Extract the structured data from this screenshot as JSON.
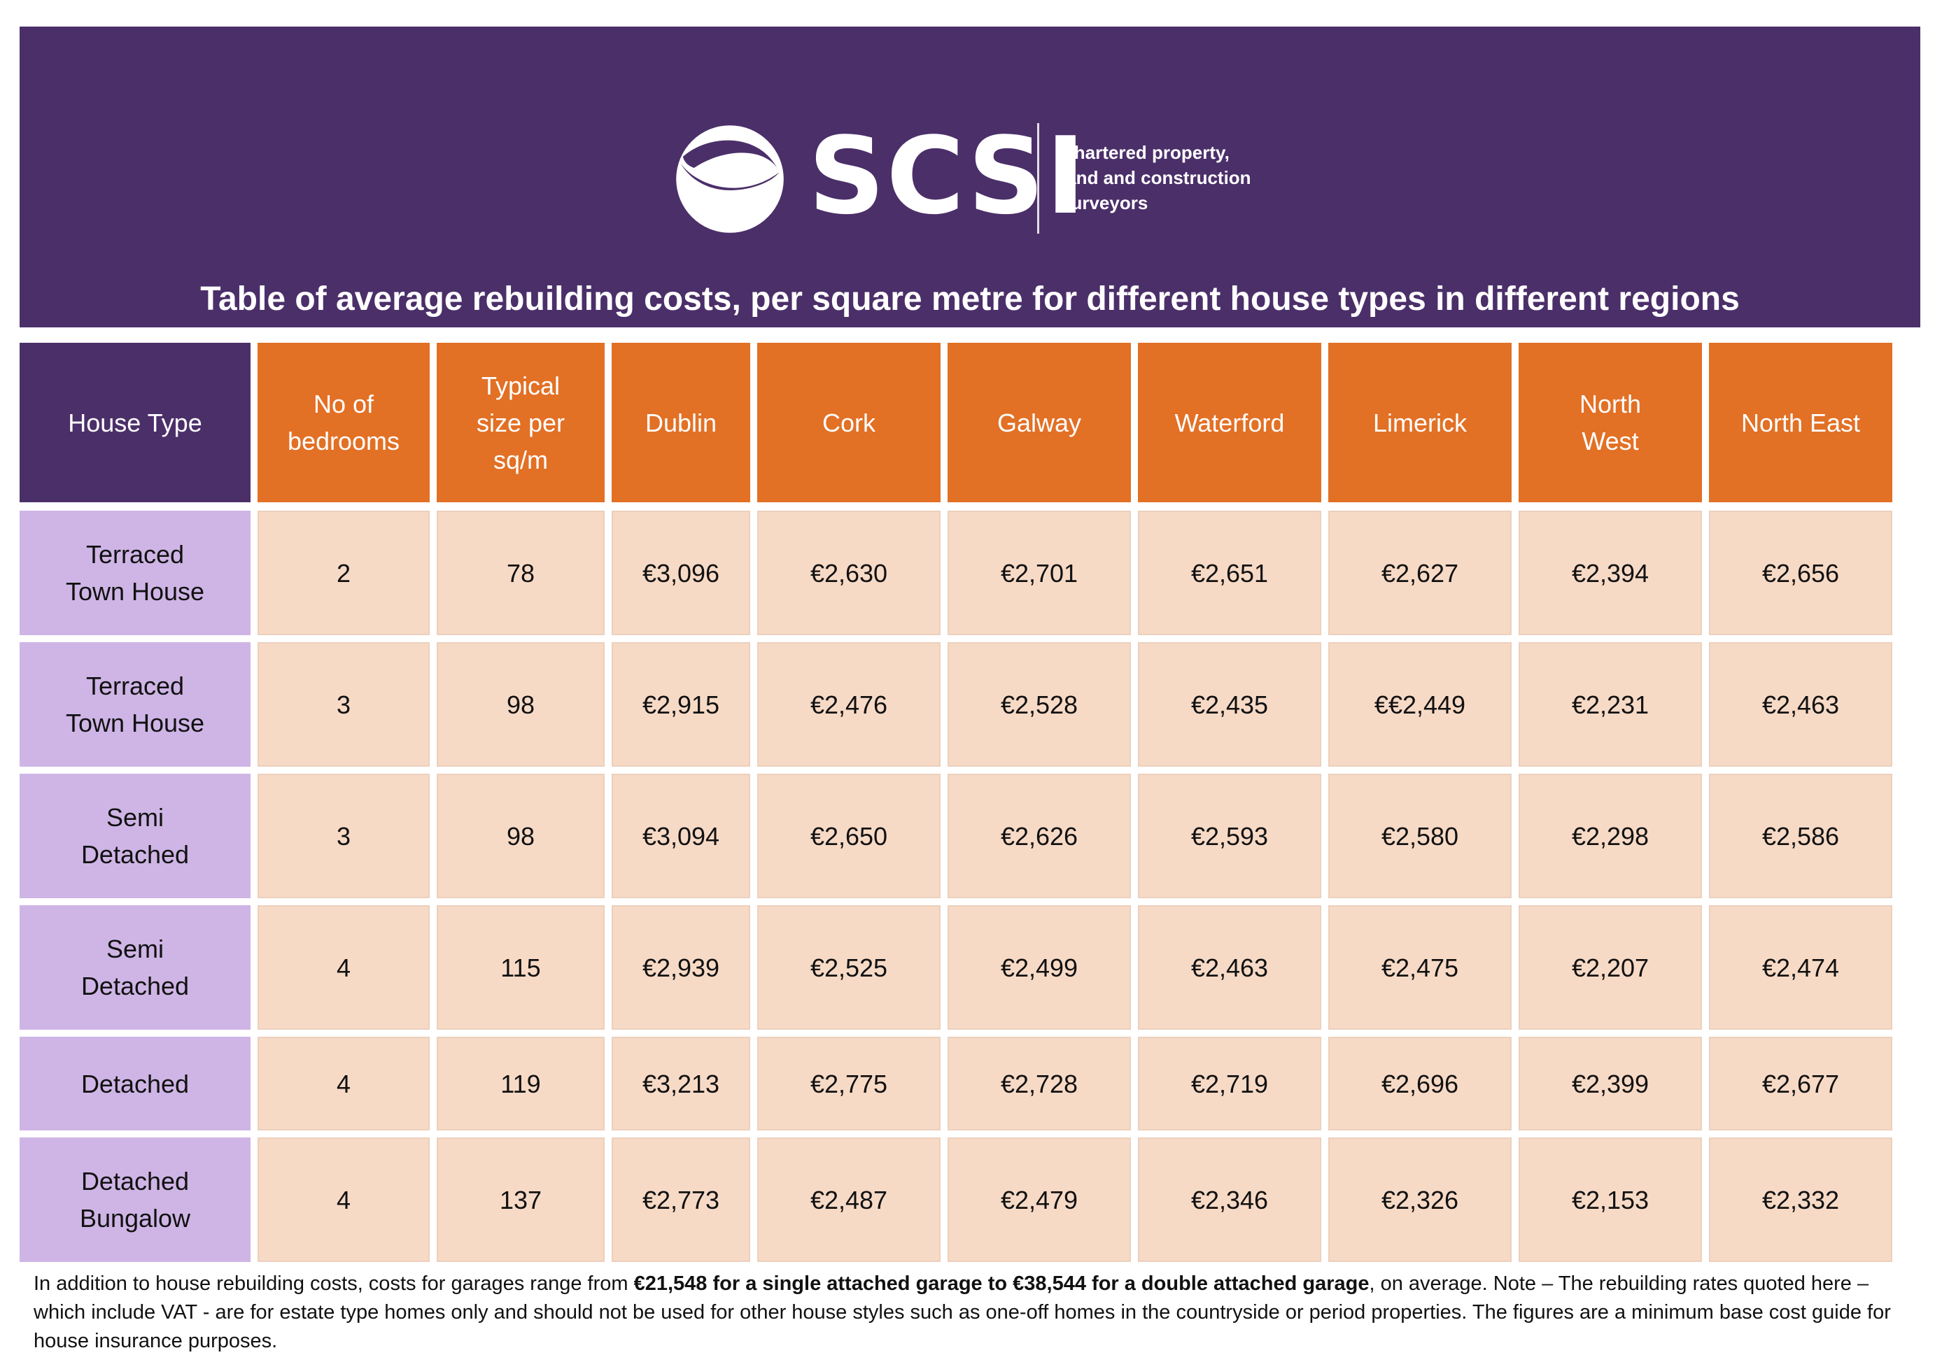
{
  "brand": {
    "name": "SCSI",
    "tagline": [
      "Chartered property,",
      "land and construction",
      "surveyors"
    ],
    "colors": {
      "purple": "#4b2f69",
      "orange": "#e27025",
      "lilac": "#cfb5e6",
      "peach": "#f7dac6"
    }
  },
  "title": "Table of average rebuilding costs, per square metre for different house types in different regions",
  "table": {
    "headers": [
      [
        "House Type"
      ],
      [
        "No  of",
        "bedrooms"
      ],
      [
        "Typical",
        "size per",
        "sq/m"
      ],
      [
        "Dublin"
      ],
      [
        "Cork"
      ],
      [
        "Galway"
      ],
      [
        "Waterford"
      ],
      [
        "Limerick"
      ],
      [
        "North",
        "West"
      ],
      [
        "North East"
      ]
    ],
    "rows": [
      {
        "house_type": [
          "Terraced",
          "Town House"
        ],
        "cells": [
          "2",
          "78",
          "€3,096",
          "€2,630",
          "€2,701",
          "€2,651",
          "€2,627",
          "€2,394",
          "€2,656"
        ]
      },
      {
        "house_type": [
          "Terraced",
          "Town House"
        ],
        "cells": [
          "3",
          "98",
          "€2,915",
          "€2,476",
          "€2,528",
          "€2,435",
          "€€2,449",
          "€2,231",
          "€2,463"
        ]
      },
      {
        "house_type": [
          "Semi",
          "Detached"
        ],
        "cells": [
          "3",
          "98",
          "€3,094",
          "€2,650",
          "€2,626",
          "€2,593",
          "€2,580",
          "€2,298",
          "€2,586"
        ]
      },
      {
        "house_type": [
          "Semi",
          "Detached"
        ],
        "cells": [
          "4",
          "115",
          "€2,939",
          "€2,525",
          "€2,499",
          "€2,463",
          "€2,475",
          "€2,207",
          "€2,474"
        ]
      },
      {
        "house_type": [
          "Detached"
        ],
        "cells": [
          "4",
          "119",
          "€3,213",
          "€2,775",
          "€2,728",
          "€2,719",
          "€2,696",
          "€2,399",
          "€2,677"
        ]
      },
      {
        "house_type": [
          "Detached",
          "Bungalow"
        ],
        "cells": [
          "4",
          "137",
          "€2,773",
          "€2,487",
          "€2,479",
          "€2,346",
          "€2,326",
          "€2,153",
          "€2,332"
        ]
      }
    ]
  },
  "footnote": {
    "part1": "In addition to house rebuilding costs, costs for garages range from ",
    "bold": "€21,548 for a single attached garage to €38,544 for a double attached garage",
    "part2": ", on average. Note – The rebuilding rates quoted here – which include VAT - are for estate type homes only and should not be used for other house styles such as one-off homes in the countryside or period properties. The figures are a minimum base cost guide for house insurance purposes."
  }
}
